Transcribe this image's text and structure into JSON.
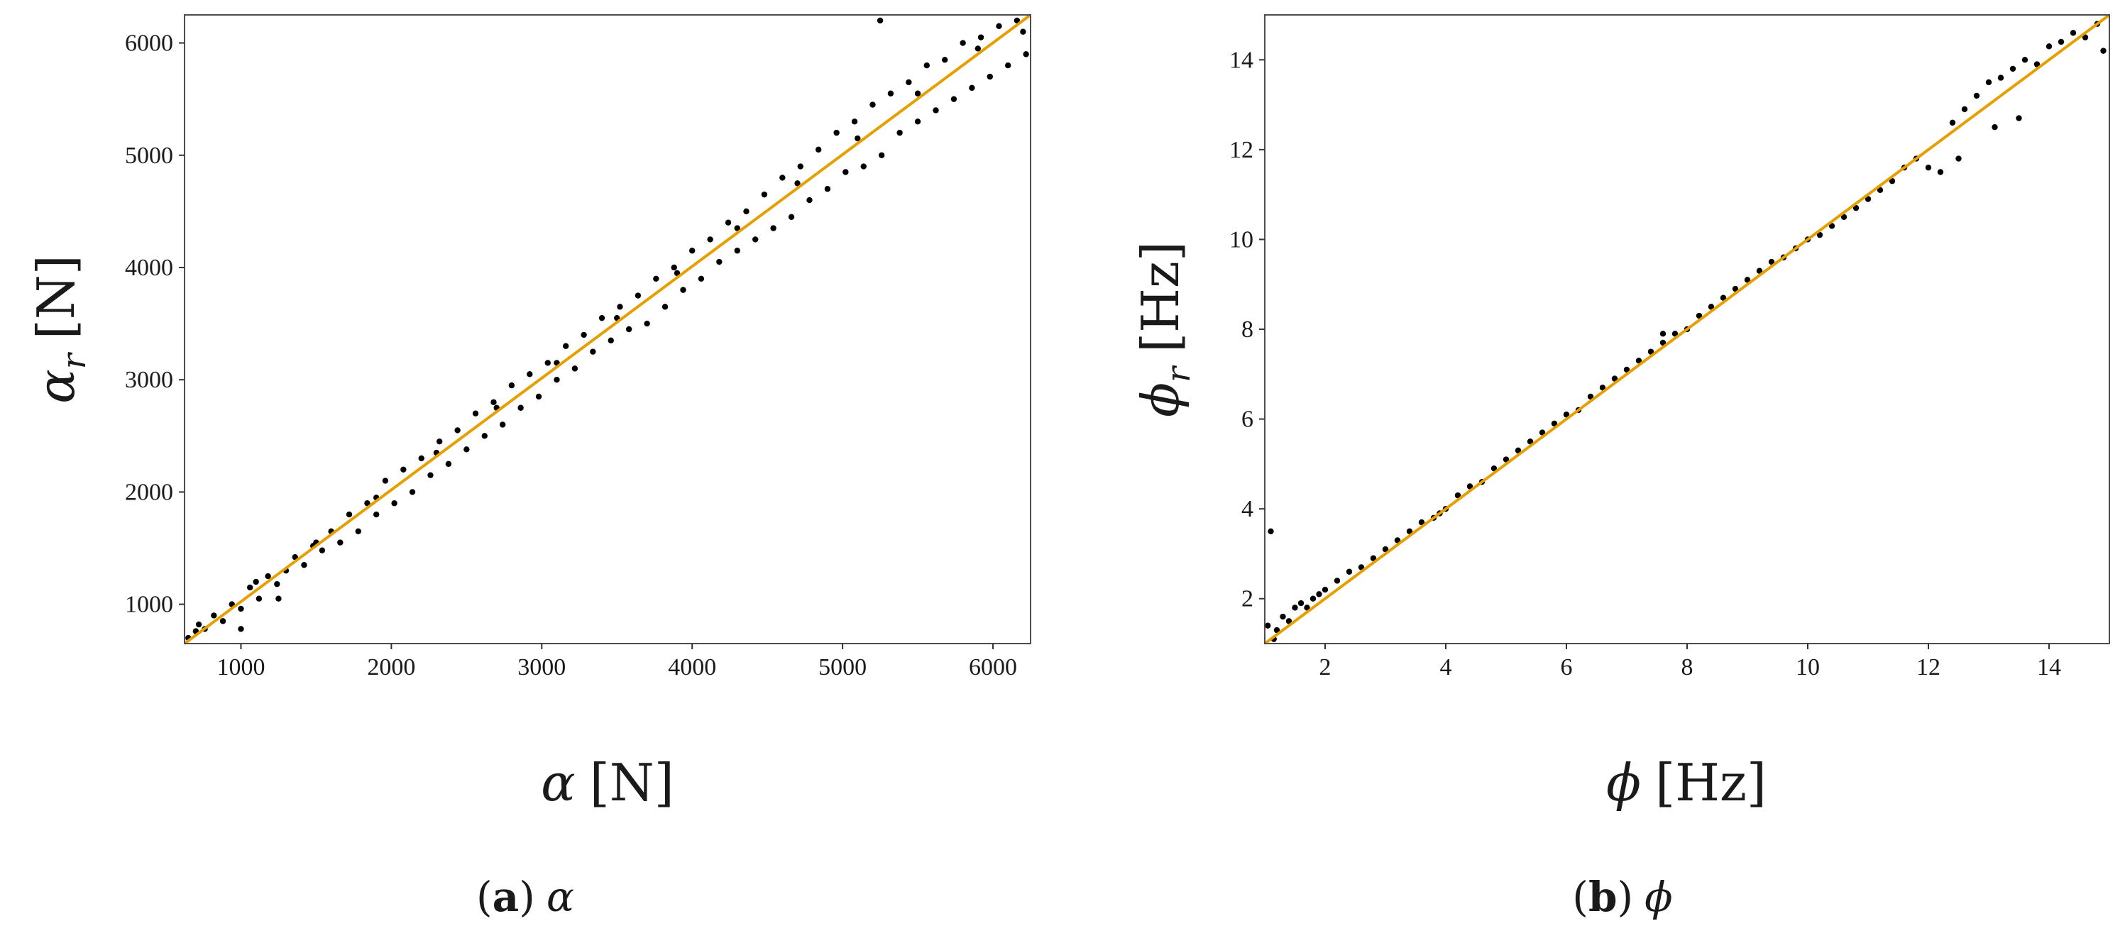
{
  "colors": {
    "points": "#000000",
    "line": "#e69f00",
    "frame": "#4d4d4d",
    "background": "#ffffff"
  },
  "panels": [
    {
      "caption": {
        "paren_open": "(",
        "letter": "a",
        "paren_close": ")",
        "symbol": "α"
      },
      "xlabel": {
        "symbol": "α",
        "unit": "[N]"
      },
      "ylabel": {
        "symbol": "α",
        "subscript": "r",
        "unit": "[N]"
      }
    },
    {
      "caption": {
        "paren_open": "(",
        "letter": "b",
        "paren_close": ")",
        "symbol": "ϕ"
      },
      "xlabel": {
        "symbol": "ϕ",
        "unit": "[Hz]"
      },
      "ylabel": {
        "symbol": "ϕ",
        "subscript": "r",
        "unit": "[Hz]"
      }
    }
  ],
  "chart_data": [
    {
      "type": "scatter",
      "title": "(a) α",
      "xlabel": "α [N]",
      "ylabel": "α_r [N]",
      "xlim": [
        625,
        6250
      ],
      "ylim": [
        650,
        6250
      ],
      "xticks": [
        1000,
        2000,
        3000,
        4000,
        5000,
        6000
      ],
      "yticks": [
        1000,
        2000,
        3000,
        4000,
        5000,
        6000
      ],
      "grid": false,
      "reference_line": {
        "x": [
          625,
          6250
        ],
        "y": [
          625,
          6250
        ],
        "color": "#e69f00"
      },
      "series": [
        {
          "name": "points",
          "x": [
            650,
            700,
            760,
            820,
            880,
            940,
            1000,
            1060,
            1120,
            1180,
            1240,
            1300,
            1360,
            1420,
            1480,
            1540,
            1600,
            1660,
            1720,
            1780,
            1840,
            1900,
            1960,
            2020,
            2080,
            2140,
            2200,
            2260,
            2320,
            2380,
            2440,
            2500,
            2560,
            2620,
            2680,
            2740,
            2800,
            2860,
            2920,
            2980,
            3040,
            3100,
            3160,
            3220,
            3280,
            3340,
            3400,
            3460,
            3520,
            3580,
            3640,
            3700,
            3760,
            3820,
            3880,
            3940,
            4000,
            4060,
            4120,
            4180,
            4240,
            4300,
            4360,
            4420,
            4480,
            4540,
            4600,
            4660,
            4720,
            4780,
            4840,
            4900,
            4960,
            5020,
            5080,
            5140,
            5200,
            5260,
            5320,
            5380,
            5440,
            5500,
            5560,
            5620,
            5680,
            5740,
            5800,
            5860,
            5920,
            5980,
            6040,
            6100,
            6160,
            6220,
            720,
            1100,
            1500,
            1900,
            2300,
            2700,
            3100,
            3500,
            3900,
            4300,
            4700,
            5100,
            5500,
            5900,
            6200,
            5250,
            1000,
            1250
          ],
          "y": [
            700,
            760,
            780,
            900,
            850,
            1000,
            960,
            1150,
            1050,
            1250,
            1180,
            1300,
            1420,
            1350,
            1520,
            1480,
            1650,
            1550,
            1800,
            1650,
            1900,
            1800,
            2100,
            1900,
            2200,
            2000,
            2300,
            2150,
            2450,
            2250,
            2550,
            2380,
            2700,
            2500,
            2800,
            2600,
            2950,
            2750,
            3050,
            2850,
            3150,
            3000,
            3300,
            3100,
            3400,
            3250,
            3550,
            3350,
            3650,
            3450,
            3750,
            3500,
            3900,
            3650,
            4000,
            3800,
            4150,
            3900,
            4250,
            4050,
            4400,
            4150,
            4500,
            4250,
            4650,
            4350,
            4800,
            4450,
            4900,
            4600,
            5050,
            4700,
            5200,
            4850,
            5300,
            4900,
            5450,
            5000,
            5550,
            5200,
            5650,
            5300,
            5800,
            5400,
            5850,
            5500,
            6000,
            5600,
            6050,
            5700,
            6150,
            5800,
            6200,
            5900,
            820,
            1200,
            1550,
            1950,
            2350,
            2750,
            3150,
            3550,
            3950,
            4350,
            4750,
            5150,
            5550,
            5950,
            6100,
            6200,
            780,
            1050
          ]
        }
      ]
    },
    {
      "type": "scatter",
      "title": "(b) ϕ",
      "xlabel": "ϕ [Hz]",
      "ylabel": "ϕ_r [Hz]",
      "xlim": [
        1,
        15
      ],
      "ylim": [
        1,
        15
      ],
      "xticks": [
        2,
        4,
        6,
        8,
        10,
        12,
        14
      ],
      "yticks": [
        2,
        4,
        6,
        8,
        10,
        12,
        14
      ],
      "grid": false,
      "reference_line": {
        "x": [
          1,
          15
        ],
        "y": [
          1,
          15
        ],
        "color": "#e69f00"
      },
      "series": [
        {
          "name": "points",
          "x": [
            1.05,
            1.1,
            1.2,
            1.3,
            1.4,
            1.5,
            1.6,
            1.7,
            1.8,
            1.9,
            2.0,
            2.2,
            2.4,
            2.6,
            2.8,
            3.0,
            3.2,
            3.4,
            3.6,
            3.8,
            4.0,
            4.2,
            4.4,
            4.6,
            4.8,
            5.0,
            5.2,
            5.4,
            5.6,
            5.8,
            6.0,
            6.2,
            6.4,
            6.6,
            6.8,
            7.0,
            7.2,
            7.4,
            7.6,
            7.8,
            8.0,
            8.2,
            8.4,
            8.6,
            8.8,
            9.0,
            9.2,
            9.4,
            9.6,
            9.8,
            10.0,
            10.2,
            10.4,
            10.6,
            10.8,
            11.0,
            11.2,
            11.4,
            11.6,
            11.8,
            12.0,
            12.2,
            12.4,
            12.6,
            12.8,
            13.0,
            13.2,
            13.4,
            13.6,
            13.8,
            14.0,
            14.2,
            14.4,
            14.6,
            14.8,
            14.9,
            12.5,
            13.1,
            13.5,
            1.15,
            3.9,
            7.6
          ],
          "y": [
            1.4,
            3.5,
            1.3,
            1.6,
            1.5,
            1.8,
            1.9,
            1.8,
            2.0,
            2.1,
            2.2,
            2.4,
            2.6,
            2.7,
            2.9,
            3.1,
            3.3,
            3.5,
            3.7,
            3.8,
            4.0,
            4.3,
            4.5,
            4.6,
            4.9,
            5.1,
            5.3,
            5.5,
            5.7,
            5.9,
            6.1,
            6.2,
            6.5,
            6.7,
            6.9,
            7.1,
            7.3,
            7.5,
            7.7,
            7.9,
            8.0,
            8.3,
            8.5,
            8.7,
            8.9,
            9.1,
            9.3,
            9.5,
            9.6,
            9.8,
            10.0,
            10.1,
            10.3,
            10.5,
            10.7,
            10.9,
            11.1,
            11.3,
            11.6,
            11.8,
            11.6,
            11.5,
            12.6,
            12.9,
            13.2,
            13.5,
            13.6,
            13.8,
            14.0,
            13.9,
            14.3,
            14.4,
            14.6,
            14.5,
            14.8,
            14.2,
            11.8,
            12.5,
            12.7,
            1.1,
            3.9,
            7.9
          ]
        }
      ]
    }
  ]
}
